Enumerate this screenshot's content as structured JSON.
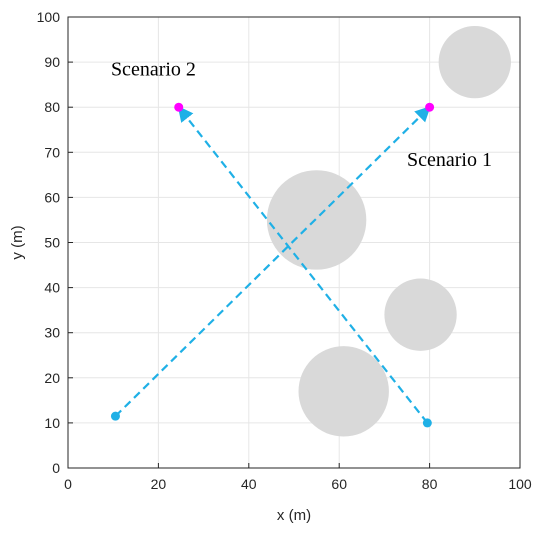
{
  "chart_data": {
    "type": "scatter",
    "title": "",
    "xlabel": "x (m)",
    "ylabel": "y (m)",
    "xlim": [
      0,
      100
    ],
    "ylim": [
      0,
      100
    ],
    "xticks": [
      "0",
      "20",
      "40",
      "60",
      "80",
      "100"
    ],
    "yticks": [
      "0",
      "10",
      "20",
      "30",
      "40",
      "50",
      "60",
      "70",
      "80",
      "90",
      "100"
    ],
    "grid": true,
    "obstacles": [
      {
        "x": 90,
        "y": 90,
        "r": 8
      },
      {
        "x": 55,
        "y": 55,
        "r": 11
      },
      {
        "x": 78,
        "y": 34,
        "r": 8
      },
      {
        "x": 61,
        "y": 17,
        "r": 10
      }
    ],
    "paths": [
      {
        "start": {
          "x": 10.5,
          "y": 11.5
        },
        "end": {
          "x": 80,
          "y": 80
        }
      },
      {
        "start": {
          "x": 79.5,
          "y": 10
        },
        "end": {
          "x": 24.5,
          "y": 80
        }
      }
    ],
    "annotations": [
      {
        "text": "Scenario 2",
        "x": 9.5,
        "y": 87
      },
      {
        "text": "Scenario 1",
        "x": 75,
        "y": 67
      }
    ],
    "colors": {
      "obstacle": "#d9d9d9",
      "path": "#1fb0e6",
      "start": "#1fb0e6",
      "goal": "#ff00ff",
      "grid": "#e6e6e6",
      "axis": "#262626"
    }
  }
}
